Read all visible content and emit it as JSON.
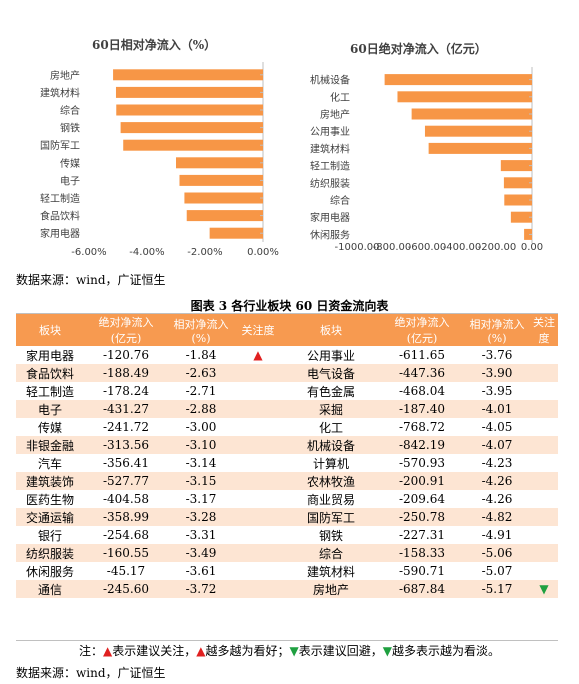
{
  "charts": {
    "left": {
      "title": "60日相对净流入（%）"
    },
    "right": {
      "title": "60日绝对净流入（亿元）"
    }
  },
  "chart_data": [
    {
      "type": "bar",
      "orientation": "horizontal",
      "title": "60日相对净流入（%）",
      "categories": [
        "房地产",
        "建筑材料",
        "综合",
        "钢铁",
        "国防军工",
        "传媒",
        "电子",
        "轻工制造",
        "食品饮料",
        "家用电器"
      ],
      "values": [
        -5.17,
        -5.07,
        -5.06,
        -4.91,
        -4.82,
        -3.0,
        -2.88,
        -2.71,
        -2.63,
        -1.84
      ],
      "xlim": [
        -6,
        0
      ],
      "ticks": [
        "-6.00%",
        "-4.00%",
        "-2.00%",
        "0.00%"
      ],
      "tick_values": [
        -6,
        -4,
        -2,
        0
      ],
      "bar_color": "#f79646",
      "grid": false
    },
    {
      "type": "bar",
      "orientation": "horizontal",
      "title": "60日绝对净流入（亿元）",
      "categories": [
        "机械设备",
        "化工",
        "房地产",
        "公用事业",
        "建筑材料",
        "轻工制造",
        "纺织服装",
        "综合",
        "家用电器",
        "休闲服务"
      ],
      "values": [
        -842.19,
        -768.72,
        -687.84,
        -611.65,
        -590.71,
        -178.24,
        -160.55,
        -158.33,
        -120.76,
        -45.17
      ],
      "xlim": [
        -1000,
        0
      ],
      "ticks": [
        "-1000.00",
        "-800.00",
        "-600.00",
        "-400.00",
        "-200.00",
        "0.00"
      ],
      "tick_values": [
        -1000,
        -800,
        -600,
        -400,
        -200,
        0
      ],
      "bar_color": "#f79646",
      "grid": false
    }
  ],
  "source_top": "数据来源：wind，广证恒生",
  "table_title": "图表 3  各行业板块 60 日资金流向表",
  "table": {
    "headers": [
      "板块",
      "绝对净流入\n(亿元)",
      "相对净流入\n(%)",
      "关注度",
      "板块",
      "绝对净流入\n(亿元)",
      "相对净流入\n(%)",
      "关注\n度"
    ],
    "rows": [
      {
        "a": "家用电器",
        "b": "-120.76",
        "c": "-1.84",
        "d": "▲",
        "e": "公用事业",
        "f": "-611.65",
        "g": "-3.76",
        "h": ""
      },
      {
        "a": "食品饮料",
        "b": "-188.49",
        "c": "-2.63",
        "d": "",
        "e": "电气设备",
        "f": "-447.36",
        "g": "-3.90",
        "h": ""
      },
      {
        "a": "轻工制造",
        "b": "-178.24",
        "c": "-2.71",
        "d": "",
        "e": "有色金属",
        "f": "-468.04",
        "g": "-3.95",
        "h": ""
      },
      {
        "a": "电子",
        "b": "-431.27",
        "c": "-2.88",
        "d": "",
        "e": "采掘",
        "f": "-187.40",
        "g": "-4.01",
        "h": ""
      },
      {
        "a": "传媒",
        "b": "-241.72",
        "c": "-3.00",
        "d": "",
        "e": "化工",
        "f": "-768.72",
        "g": "-4.05",
        "h": ""
      },
      {
        "a": "非银金融",
        "b": "-313.56",
        "c": "-3.10",
        "d": "",
        "e": "机械设备",
        "f": "-842.19",
        "g": "-4.07",
        "h": ""
      },
      {
        "a": "汽车",
        "b": "-356.41",
        "c": "-3.14",
        "d": "",
        "e": "计算机",
        "f": "-570.93",
        "g": "-4.23",
        "h": ""
      },
      {
        "a": "建筑装饰",
        "b": "-527.77",
        "c": "-3.15",
        "d": "",
        "e": "农林牧渔",
        "f": "-200.91",
        "g": "-4.26",
        "h": ""
      },
      {
        "a": "医药生物",
        "b": "-404.58",
        "c": "-3.17",
        "d": "",
        "e": "商业贸易",
        "f": "-209.64",
        "g": "-4.26",
        "h": ""
      },
      {
        "a": "交通运输",
        "b": "-358.99",
        "c": "-3.28",
        "d": "",
        "e": "国防军工",
        "f": "-250.78",
        "g": "-4.82",
        "h": ""
      },
      {
        "a": "银行",
        "b": "-254.68",
        "c": "-3.31",
        "d": "",
        "e": "钢铁",
        "f": "-227.31",
        "g": "-4.91",
        "h": ""
      },
      {
        "a": "纺织服装",
        "b": "-160.55",
        "c": "-3.49",
        "d": "",
        "e": "综合",
        "f": "-158.33",
        "g": "-5.06",
        "h": ""
      },
      {
        "a": "休闲服务",
        "b": "-45.17",
        "c": "-3.61",
        "d": "",
        "e": "建筑材料",
        "f": "-590.71",
        "g": "-5.07",
        "h": ""
      },
      {
        "a": "通信",
        "b": "-245.60",
        "c": "-3.72",
        "d": "",
        "e": "房地产",
        "f": "-687.84",
        "g": "-5.17",
        "h": "▼"
      }
    ]
  },
  "note": {
    "prefix": "注：",
    "tri1": "▲",
    "t1": "表示建议关注，",
    "tri2": "▲",
    "t2": "越多越为看好；",
    "tri3": "▼",
    "t3": "表示建议回避，",
    "tri4": "▼",
    "t4": "越多表示越为看淡。"
  },
  "source_bottom": "数据来源：wind，广证恒生",
  "colors": {
    "bar": "#f79646",
    "header": "#f79a50",
    "stripe": "#fde5d3",
    "up": "#e02020",
    "down": "#1fa040"
  }
}
